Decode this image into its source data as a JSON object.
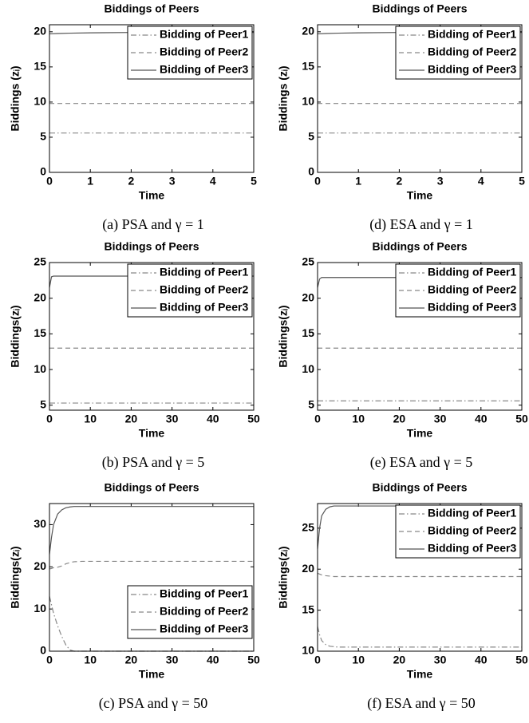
{
  "chart_data": [
    {
      "type": "line",
      "title": "Biddings of Peers",
      "xlabel": "Time",
      "ylabel": "Biddings (zᵢ)",
      "caption": "(a) PSA and γ = 1",
      "x": [
        0,
        0.2,
        0.5,
        1,
        2,
        3,
        4,
        5
      ],
      "xlim": [
        0,
        5
      ],
      "xticks": [
        0,
        1,
        2,
        3,
        4,
        5
      ],
      "ylim": [
        0,
        21
      ],
      "yticks": [
        0,
        5,
        10,
        15,
        20
      ],
      "legend": "upper right",
      "series": [
        {
          "name": "Bidding of Peer1",
          "color": "#888888",
          "linestyle": "dashdot",
          "values": [
            5.6,
            5.6,
            5.6,
            5.6,
            5.6,
            5.6,
            5.6,
            5.6
          ]
        },
        {
          "name": "Bidding of Peer2",
          "color": "#888888",
          "linestyle": "dashed",
          "values": [
            9.8,
            9.8,
            9.8,
            9.8,
            9.8,
            9.8,
            9.8,
            9.8
          ]
        },
        {
          "name": "Bidding of Peer3",
          "color": "#555555",
          "linestyle": "solid",
          "values": [
            19.7,
            19.75,
            19.8,
            19.85,
            19.9,
            19.9,
            19.9,
            19.9
          ]
        }
      ]
    },
    {
      "type": "line",
      "title": "Biddings of Peers",
      "xlabel": "Time",
      "ylabel": "Biddings (zᵢ)",
      "caption": "(d) ESA and γ = 1",
      "x": [
        0,
        0.2,
        0.5,
        1,
        2,
        3,
        4,
        5
      ],
      "xlim": [
        0,
        5
      ],
      "xticks": [
        0,
        1,
        2,
        3,
        4,
        5
      ],
      "ylim": [
        0,
        21
      ],
      "yticks": [
        0,
        5,
        10,
        15,
        20
      ],
      "legend": "upper right",
      "series": [
        {
          "name": "Bidding of Peer1",
          "color": "#888888",
          "linestyle": "dashdot",
          "values": [
            5.6,
            5.6,
            5.6,
            5.6,
            5.6,
            5.6,
            5.6,
            5.6
          ]
        },
        {
          "name": "Bidding of Peer2",
          "color": "#888888",
          "linestyle": "dashed",
          "values": [
            9.8,
            9.8,
            9.8,
            9.8,
            9.8,
            9.8,
            9.8,
            9.8
          ]
        },
        {
          "name": "Bidding of Peer3",
          "color": "#555555",
          "linestyle": "solid",
          "values": [
            19.7,
            19.75,
            19.8,
            19.85,
            19.9,
            19.9,
            19.9,
            19.9
          ]
        }
      ]
    },
    {
      "type": "line",
      "title": "Biddings of Peers",
      "xlabel": "Time",
      "ylabel": "Biddings(zᵢ)",
      "caption": "(b) PSA and γ = 5",
      "x": [
        0,
        0.5,
        1,
        2,
        5,
        10,
        20,
        30,
        40,
        50
      ],
      "xlim": [
        0,
        50
      ],
      "xticks": [
        0,
        10,
        20,
        30,
        40,
        50
      ],
      "ylim": [
        4.3,
        25
      ],
      "yticks": [
        5,
        10,
        15,
        20,
        25
      ],
      "legend": "upper right",
      "series": [
        {
          "name": "Bidding of Peer1",
          "color": "#888888",
          "linestyle": "dashdot",
          "values": [
            5.3,
            5.3,
            5.3,
            5.3,
            5.3,
            5.3,
            5.3,
            5.3,
            5.3,
            5.3
          ]
        },
        {
          "name": "Bidding of Peer2",
          "color": "#888888",
          "linestyle": "dashed",
          "values": [
            13,
            13,
            13,
            13,
            13,
            13,
            13,
            13,
            13,
            13
          ]
        },
        {
          "name": "Bidding of Peer3",
          "color": "#555555",
          "linestyle": "solid",
          "values": [
            21.5,
            23.0,
            23.1,
            23.1,
            23.1,
            23.1,
            23.1,
            23.1,
            23.1,
            23.1
          ]
        }
      ]
    },
    {
      "type": "line",
      "title": "Biddings of Peers",
      "xlabel": "Time",
      "ylabel": "Biddings(zᵢ)",
      "caption": "(e) ESA and γ = 5",
      "x": [
        0,
        0.5,
        1,
        2,
        5,
        10,
        20,
        30,
        40,
        50
      ],
      "xlim": [
        0,
        50
      ],
      "xticks": [
        0,
        10,
        20,
        30,
        40,
        50
      ],
      "ylim": [
        4.3,
        25
      ],
      "yticks": [
        5,
        10,
        15,
        20,
        25
      ],
      "legend": "upper right",
      "series": [
        {
          "name": "Bidding of Peer1",
          "color": "#888888",
          "linestyle": "dashdot",
          "values": [
            5.6,
            5.6,
            5.6,
            5.6,
            5.6,
            5.6,
            5.6,
            5.6,
            5.6,
            5.6
          ]
        },
        {
          "name": "Bidding of Peer2",
          "color": "#888888",
          "linestyle": "dashed",
          "values": [
            13,
            13,
            13,
            13,
            13,
            13,
            13,
            13,
            13,
            13
          ]
        },
        {
          "name": "Bidding of Peer3",
          "color": "#555555",
          "linestyle": "solid",
          "values": [
            21.5,
            22.7,
            22.9,
            22.9,
            22.9,
            22.9,
            22.9,
            22.9,
            22.9,
            22.9
          ]
        }
      ]
    },
    {
      "type": "line",
      "title": "Biddings of Peers",
      "xlabel": "Time",
      "ylabel": "Biddings(zᵢ)",
      "caption": "(c) PSA and γ = 50",
      "x": [
        0,
        0.5,
        1,
        2,
        3,
        4,
        5,
        6,
        8,
        10,
        20,
        30,
        40,
        50
      ],
      "xlim": [
        0,
        50
      ],
      "xticks": [
        0,
        10,
        20,
        30,
        40,
        50
      ],
      "ylim": [
        0,
        35
      ],
      "yticks": [
        0,
        10,
        20,
        30
      ],
      "legend": "lower right",
      "series": [
        {
          "name": "Bidding of Peer1",
          "color": "#888888",
          "linestyle": "dashdot",
          "values": [
            13,
            11,
            9,
            6,
            3.5,
            1.5,
            0.3,
            0,
            0,
            0,
            0,
            0,
            0,
            0
          ]
        },
        {
          "name": "Bidding of Peer2",
          "color": "#888888",
          "linestyle": "dashed",
          "values": [
            19.5,
            19.6,
            19.8,
            19.9,
            20.2,
            20.7,
            21.0,
            21.2,
            21.3,
            21.3,
            21.3,
            21.3,
            21.3,
            21.3
          ]
        },
        {
          "name": "Bidding of Peer3",
          "color": "#555555",
          "linestyle": "solid",
          "values": [
            23,
            27,
            30,
            32.5,
            33.5,
            34,
            34.2,
            34.3,
            34.3,
            34.3,
            34.3,
            34.3,
            34.3,
            34.3
          ]
        }
      ]
    },
    {
      "type": "line",
      "title": "Biddings of Peers",
      "xlabel": "Time",
      "ylabel": "Biddings(zᵢ)",
      "caption": "(f) ESA and γ = 50",
      "x": [
        0,
        0.5,
        1,
        2,
        3,
        4,
        5,
        6,
        8,
        10,
        20,
        30,
        40,
        50
      ],
      "xlim": [
        0,
        50
      ],
      "xticks": [
        0,
        10,
        20,
        30,
        40,
        50
      ],
      "ylim": [
        10,
        28
      ],
      "yticks": [
        10,
        15,
        20,
        25
      ],
      "legend": "upper right",
      "series": [
        {
          "name": "Bidding of Peer1",
          "color": "#888888",
          "linestyle": "dashdot",
          "values": [
            13,
            12,
            11.3,
            10.8,
            10.6,
            10.55,
            10.5,
            10.5,
            10.5,
            10.5,
            10.5,
            10.5,
            10.5,
            10.5
          ]
        },
        {
          "name": "Bidding of Peer2",
          "color": "#888888",
          "linestyle": "dashed",
          "values": [
            19.5,
            19.4,
            19.3,
            19.2,
            19.15,
            19.1,
            19.1,
            19.1,
            19.1,
            19.1,
            19.1,
            19.1,
            19.1,
            19.1
          ]
        },
        {
          "name": "Bidding of Peer3",
          "color": "#555555",
          "linestyle": "solid",
          "values": [
            22.5,
            25,
            26.5,
            27.3,
            27.6,
            27.7,
            27.7,
            27.7,
            27.7,
            27.7,
            27.7,
            27.7,
            27.7,
            27.7
          ]
        }
      ]
    }
  ]
}
